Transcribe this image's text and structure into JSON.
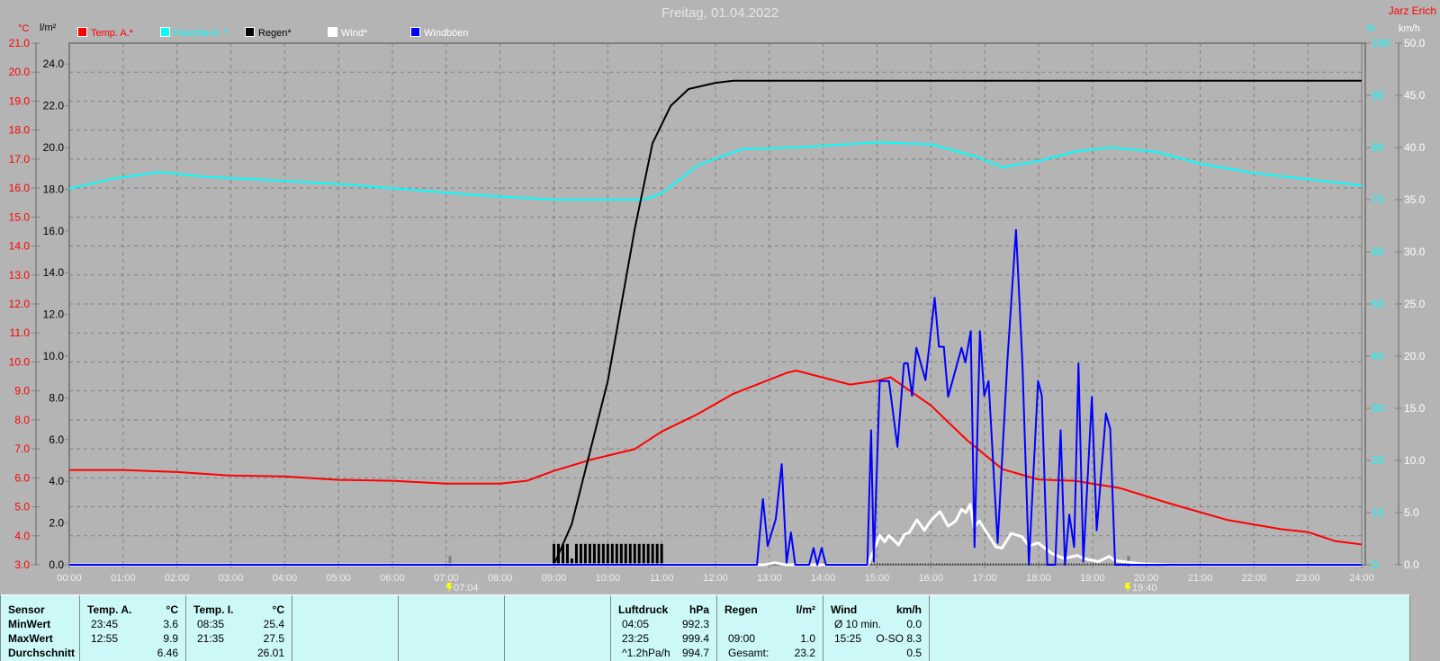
{
  "title": "Freitag, 01.04.2022",
  "author": "Jarz Erich",
  "colors": {
    "temp": "#ff0000",
    "humidity": "#00ffff",
    "rain": "#000000",
    "wind": "#ffffff",
    "gusts": "#0000ff",
    "background": "#b4b4b4",
    "table": "#ccf8f8"
  },
  "legend": [
    {
      "label": "Temp. A.*",
      "color": "#ff0000"
    },
    {
      "label": "Feuchte A. *",
      "color": "#00ffff"
    },
    {
      "label": "Regen*",
      "color": "#000000"
    },
    {
      "label": "Wind*",
      "color": "#ffffff"
    },
    {
      "label": "Windböen",
      "color": "#0000ff"
    }
  ],
  "chart_data": {
    "type": "line",
    "title": "Freitag, 01.04.2022",
    "x_unit": "hour of day",
    "xlim": [
      0,
      24
    ],
    "x_ticks": [
      "00:00",
      "01:00",
      "02:00",
      "03:00",
      "04:00",
      "05:00",
      "06:00",
      "07:00",
      "08:00",
      "09:00",
      "10:00",
      "11:00",
      "12:00",
      "13:00",
      "14:00",
      "15:00",
      "16:00",
      "17:00",
      "18:00",
      "19:00",
      "20:00",
      "21:00",
      "22:00",
      "23:00",
      "24:00"
    ],
    "grid": true,
    "legend_position": "top-left",
    "axes": {
      "temp": {
        "unit": "°C",
        "range": [
          3,
          21
        ],
        "ticks": [
          "21.0",
          "20.0",
          "19.0",
          "18.0",
          "17.0",
          "16.0",
          "15.0",
          "14.0",
          "13.0",
          "12.0",
          "11.0",
          "10.0",
          "9.0",
          "8.0",
          "7.0",
          "6.0",
          "5.0",
          "4.0",
          "3.0"
        ]
      },
      "rain": {
        "unit": "l/m²",
        "range": [
          0,
          25
        ],
        "ticks": [
          "24.0",
          "22.0",
          "20.0",
          "18.0",
          "16.0",
          "14.0",
          "12.0",
          "10.0",
          "8.0",
          "6.0",
          "4.0",
          "2.0",
          "0.0"
        ]
      },
      "humidity": {
        "unit": "%",
        "range": [
          0,
          100
        ],
        "ticks": [
          "100",
          "90",
          "80",
          "70",
          "60",
          "50",
          "40",
          "30",
          "20",
          "10",
          "0"
        ]
      },
      "wind": {
        "unit": "km/h",
        "range": [
          0,
          50
        ],
        "ticks": [
          "50.0",
          "45.0",
          "40.0",
          "35.0",
          "30.0",
          "25.0",
          "20.0",
          "15.0",
          "10.0",
          "5.0",
          "0.0"
        ]
      }
    },
    "markers": [
      {
        "label": "07:04",
        "x": 7.07,
        "type": "sunrise"
      },
      {
        "label": "19:40",
        "x": 19.67,
        "type": "sunset"
      }
    ],
    "series": [
      {
        "name": "Temp. A.*",
        "axis": "temp",
        "color": "#ff0000",
        "points": [
          [
            0,
            6.27
          ],
          [
            1,
            6.27
          ],
          [
            2,
            6.2
          ],
          [
            3,
            6.08
          ],
          [
            4,
            6.05
          ],
          [
            5,
            5.93
          ],
          [
            6,
            5.9
          ],
          [
            7,
            5.8
          ],
          [
            8,
            5.8
          ],
          [
            8.5,
            5.9
          ],
          [
            9,
            6.24
          ],
          [
            9.67,
            6.62
          ],
          [
            10.5,
            6.99
          ],
          [
            11,
            7.6
          ],
          [
            11.67,
            8.2
          ],
          [
            12.33,
            8.9
          ],
          [
            13.33,
            9.63
          ],
          [
            13.5,
            9.7
          ],
          [
            14.5,
            9.22
          ],
          [
            15,
            9.35
          ],
          [
            15.25,
            9.47
          ],
          [
            16,
            8.5
          ],
          [
            16.67,
            7.3
          ],
          [
            17.33,
            6.3
          ],
          [
            18,
            5.94
          ],
          [
            18.67,
            5.9
          ],
          [
            19.5,
            5.65
          ],
          [
            20.5,
            5.08
          ],
          [
            21.5,
            4.55
          ],
          [
            22.5,
            4.23
          ],
          [
            23,
            4.13
          ],
          [
            23.5,
            3.82
          ],
          [
            24,
            3.7
          ]
        ]
      },
      {
        "name": "Feuchte A. *",
        "axis": "humidity",
        "color": "#00ffff",
        "points": [
          [
            0,
            72.1
          ],
          [
            0.8,
            74
          ],
          [
            1.67,
            75.3
          ],
          [
            2.5,
            74.4
          ],
          [
            4,
            73.6
          ],
          [
            5,
            73
          ],
          [
            6.5,
            71.8
          ],
          [
            7.5,
            70.9
          ],
          [
            9,
            70
          ],
          [
            10.67,
            70
          ],
          [
            11,
            71.2
          ],
          [
            11.67,
            76.6
          ],
          [
            12.5,
            79.7
          ],
          [
            13.5,
            80
          ],
          [
            15,
            81
          ],
          [
            16,
            80.6
          ],
          [
            16.83,
            78.3
          ],
          [
            17.33,
            76.2
          ],
          [
            18,
            77.4
          ],
          [
            18.67,
            79.2
          ],
          [
            19.33,
            80
          ],
          [
            20.17,
            79.2
          ],
          [
            21,
            76.9
          ],
          [
            22,
            75.1
          ],
          [
            23,
            73.9
          ],
          [
            24,
            72.7
          ]
        ]
      },
      {
        "name": "Regen*",
        "axis": "rain",
        "color": "#000000",
        "points": [
          [
            0,
            0
          ],
          [
            9,
            0
          ],
          [
            9.33,
            1.94
          ],
          [
            10,
            8.8
          ],
          [
            10.5,
            16.1
          ],
          [
            10.83,
            20.2
          ],
          [
            11.17,
            22
          ],
          [
            11.5,
            22.8
          ],
          [
            12,
            23.1
          ],
          [
            12.33,
            23.2
          ],
          [
            24,
            23.2
          ]
        ]
      },
      {
        "name": "Regen* interval",
        "axis": "rain",
        "color": "#000000",
        "type": "bar",
        "points": [
          [
            9,
            1.0
          ],
          [
            9.083,
            1.0
          ],
          [
            9.167,
            1.0
          ],
          [
            9.25,
            1.0
          ],
          [
            9.333,
            0.3
          ],
          [
            9.417,
            1.0
          ],
          [
            9.5,
            1.0
          ],
          [
            9.583,
            1.0
          ],
          [
            9.667,
            1.0
          ],
          [
            9.75,
            1.0
          ],
          [
            9.833,
            1.0
          ],
          [
            9.917,
            1.0
          ],
          [
            10,
            1.0
          ],
          [
            10.083,
            1.0
          ],
          [
            10.167,
            1.0
          ],
          [
            10.25,
            1.0
          ],
          [
            10.333,
            1.0
          ],
          [
            10.417,
            1.0
          ],
          [
            10.5,
            1.0
          ],
          [
            10.583,
            1.0
          ],
          [
            10.667,
            1.0
          ],
          [
            10.75,
            1.0
          ],
          [
            10.833,
            1.0
          ],
          [
            10.917,
            1.0
          ],
          [
            11,
            1.0
          ]
        ]
      },
      {
        "name": "Wind*",
        "axis": "wind",
        "color": "#ffffff",
        "points": [
          [
            0,
            0
          ],
          [
            12.9,
            0
          ],
          [
            13.1,
            0.2
          ],
          [
            13.3,
            0
          ],
          [
            14.83,
            0
          ],
          [
            15.05,
            2.8
          ],
          [
            15.14,
            2.2
          ],
          [
            15.22,
            2.8
          ],
          [
            15.4,
            1.9
          ],
          [
            15.51,
            2.9
          ],
          [
            15.6,
            3.1
          ],
          [
            15.74,
            4.3
          ],
          [
            15.88,
            3.3
          ],
          [
            16.01,
            4.3
          ],
          [
            16.17,
            5.1
          ],
          [
            16.32,
            3.7
          ],
          [
            16.46,
            4.2
          ],
          [
            16.57,
            5.3
          ],
          [
            16.65,
            5.0
          ],
          [
            16.73,
            5.8
          ],
          [
            16.8,
            3.6
          ],
          [
            16.9,
            4.2
          ],
          [
            17.21,
            1.7
          ],
          [
            17.32,
            1.6
          ],
          [
            17.49,
            3.0
          ],
          [
            17.69,
            2.7
          ],
          [
            17.82,
            1.8
          ],
          [
            17.99,
            2.1
          ],
          [
            18.24,
            1.1
          ],
          [
            18.47,
            0.6
          ],
          [
            18.72,
            0.9
          ],
          [
            18.83,
            0.6
          ],
          [
            19.11,
            0.3
          ],
          [
            19.31,
            0.8
          ],
          [
            19.42,
            0.4
          ],
          [
            19.88,
            0.1
          ],
          [
            20.5,
            0
          ],
          [
            24,
            0
          ]
        ]
      },
      {
        "name": "Windböen",
        "axis": "wind",
        "color": "#0000ff",
        "points": [
          [
            0,
            0
          ],
          [
            12.77,
            0
          ],
          [
            12.88,
            6.3
          ],
          [
            12.97,
            1.8
          ],
          [
            13.12,
            4.4
          ],
          [
            13.23,
            9.65
          ],
          [
            13.32,
            0.2
          ],
          [
            13.4,
            3.1
          ],
          [
            13.48,
            0
          ],
          [
            13.74,
            0
          ],
          [
            13.82,
            1.6
          ],
          [
            13.89,
            0
          ],
          [
            13.97,
            1.6
          ],
          [
            14.05,
            0
          ],
          [
            14.82,
            0
          ],
          [
            14.89,
            12.9
          ],
          [
            14.94,
            0.3
          ],
          [
            15.05,
            17.6
          ],
          [
            15.22,
            17.6
          ],
          [
            15.38,
            11.3
          ],
          [
            15.5,
            19.3
          ],
          [
            15.57,
            19.3
          ],
          [
            15.65,
            16.2
          ],
          [
            15.73,
            20.8
          ],
          [
            15.9,
            17.7
          ],
          [
            16.07,
            25.6
          ],
          [
            16.15,
            20.9
          ],
          [
            16.24,
            20.9
          ],
          [
            16.32,
            16.1
          ],
          [
            16.57,
            20.8
          ],
          [
            16.64,
            19.4
          ],
          [
            16.74,
            22.4
          ],
          [
            16.81,
            1.7
          ],
          [
            16.91,
            22.4
          ],
          [
            16.99,
            16.2
          ],
          [
            17.07,
            17.6
          ],
          [
            17.24,
            2.1
          ],
          [
            17.42,
            19.5
          ],
          [
            17.58,
            32.1
          ],
          [
            17.7,
            19.4
          ],
          [
            17.82,
            0
          ],
          [
            17.99,
            17.6
          ],
          [
            18.06,
            16.2
          ],
          [
            18.16,
            0
          ],
          [
            18.31,
            0
          ],
          [
            18.41,
            12.9
          ],
          [
            18.49,
            0
          ],
          [
            18.57,
            4.8
          ],
          [
            18.66,
            1.7
          ],
          [
            18.74,
            19.3
          ],
          [
            18.83,
            0.3
          ],
          [
            18.99,
            16.1
          ],
          [
            19.08,
            3.3
          ],
          [
            19.25,
            14.5
          ],
          [
            19.33,
            13
          ],
          [
            19.42,
            0
          ],
          [
            24,
            0
          ]
        ]
      }
    ]
  },
  "table": {
    "columns": [
      {
        "rows": [
          [
            "Sensor",
            ""
          ],
          [
            "MinWert",
            ""
          ],
          [
            "MaxWert",
            ""
          ],
          [
            "Durchschnitt",
            ""
          ]
        ],
        "bold": true
      },
      {
        "head": [
          "Temp. A.",
          "°C"
        ],
        "rows": [
          [
            "23:45",
            "3.6"
          ],
          [
            "12:55",
            "9.9"
          ],
          [
            "",
            "6.46"
          ]
        ]
      },
      {
        "head": [
          "Temp. I.",
          "°C"
        ],
        "rows": [
          [
            "08:35",
            "25.4"
          ],
          [
            "21:35",
            "27.5"
          ],
          [
            "",
            "26.01"
          ]
        ]
      },
      {
        "head": [
          "",
          ""
        ],
        "rows": []
      },
      {
        "head": [
          "",
          ""
        ],
        "rows": []
      },
      {
        "head": [
          "",
          ""
        ],
        "rows": []
      },
      {
        "head": [
          "Luftdruck",
          "hPa"
        ],
        "rows": [
          [
            "04:05",
            "992.3"
          ],
          [
            "23:25",
            "999.4"
          ],
          [
            "^1.2hPa/h",
            "994.7"
          ]
        ]
      },
      {
        "head": [
          "Regen",
          "l/m²"
        ],
        "rows": [
          [
            "",
            ""
          ],
          [
            "09:00",
            "1.0"
          ],
          [
            "Gesamt:",
            "23.2"
          ]
        ]
      },
      {
        "head": [
          "Wind",
          "km/h"
        ],
        "rows": [
          [
            "Ø 10 min.",
            "0.0"
          ],
          [
            "15:25",
            "O-SO 8.3"
          ],
          [
            "",
            "0.5"
          ]
        ]
      }
    ]
  }
}
